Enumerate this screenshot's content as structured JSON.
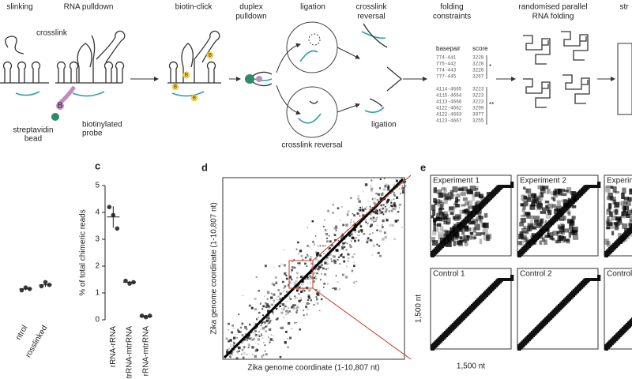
{
  "steps": [
    [
      "slinking"
    ],
    [
      "RNA pulldown"
    ],
    [
      "biotin-click"
    ],
    [
      "duplex",
      "pulldown"
    ],
    [
      "ligation"
    ],
    [
      "crosslink",
      "reversal"
    ],
    [
      "folding",
      "constraints"
    ],
    [
      "randomised parallel",
      "RNA folding"
    ],
    [
      "str"
    ]
  ],
  "annotations": {
    "crosslink": "crosslink",
    "streptavidin_bead": [
      "streptavidin",
      "bead"
    ],
    "biotinylated_probe": [
      "biotinylated",
      "probe"
    ],
    "ligation": "ligation",
    "crosslink_reversal": "crosslink reversal",
    "biotin": "B"
  },
  "folding_table": {
    "headers": [
      "basepair",
      "score"
    ],
    "rows": [
      [
        "774-441",
        "3228"
      ],
      [
        "775-442",
        "3228"
      ],
      [
        "774-443",
        "3228"
      ],
      [
        "777-445",
        "3267"
      ],
      [
        "4114-4665",
        "3223"
      ],
      [
        "4115-4664",
        "3223"
      ],
      [
        "4113-4666",
        "3223"
      ],
      [
        "4122-4662",
        "3299"
      ],
      [
        "4122-4663",
        "3077"
      ],
      [
        "4123-4667",
        "3255"
      ]
    ],
    "stars": [
      "*",
      "**"
    ]
  },
  "panel_labels": {
    "c": "c",
    "d": "d",
    "e": "e"
  },
  "chart_data": [
    {
      "type": "dot",
      "categories": [
        "ntrol",
        "rosslinked"
      ],
      "values": [
        [
          1.1,
          1.2,
          1.15
        ],
        [
          1.25,
          1.4,
          1.3
        ]
      ],
      "means": [
        1.15,
        1.3
      ],
      "errors": [
        0.05,
        0.08
      ],
      "color": "#3a3a3a",
      "ylim": [
        0,
        5
      ]
    },
    {
      "type": "dot",
      "y_label": "% of total chimeric reads",
      "categories": [
        "rRNA-rRNA",
        "mtrRNA-mtrRNA",
        "rRNA-mtrRNA"
      ],
      "values": [
        [
          4.2,
          3.9,
          3.4
        ],
        [
          1.45,
          1.35,
          1.4
        ],
        [
          0.15,
          0.1,
          0.15
        ]
      ],
      "means": [
        3.83,
        1.4,
        0.13
      ],
      "errors": [
        0.4,
        0.05,
        0.03
      ],
      "color": "#3a3a3a",
      "ylim": [
        0,
        5
      ],
      "yticks": [
        0,
        1,
        2,
        3,
        4,
        5
      ]
    }
  ],
  "panel_d": {
    "x_label": "Zika genome coordinate (1-10,807 nt)",
    "y_label": "Zika genome coordinate (1-10,807 nt)"
  },
  "panel_e": {
    "experiments": [
      "Experiment 1",
      "Experiment 2",
      "Experime"
    ],
    "controls": [
      "Control 1",
      "Control 2",
      "Control 3"
    ],
    "scale_label": "1,500 nt"
  }
}
